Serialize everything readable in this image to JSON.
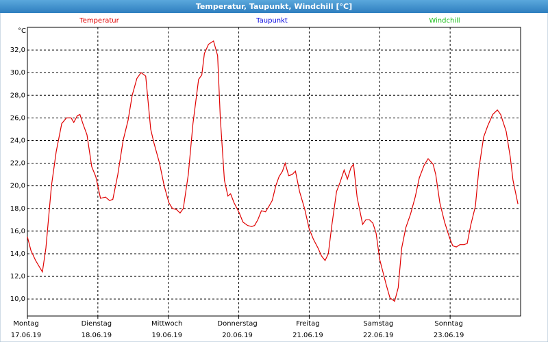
{
  "chart_data": {
    "type": "line",
    "title": "Temperatur, Taupunkt, Windchill [°C]",
    "y_unit": "°C",
    "x": [
      0,
      1.2,
      2.8,
      5.1,
      6.3,
      8.2,
      9.8,
      11.7,
      13.3,
      14.9,
      15.8,
      17.0,
      17.9,
      18.9,
      20.3,
      21.9,
      23.3,
      24.9,
      26.6,
      28.0,
      29.1,
      30.8,
      32.6,
      34.3,
      35.7,
      37.3,
      38.7,
      40.3,
      42.0,
      43.1,
      45.0,
      46.6,
      48.2,
      49.4,
      50.8,
      52.0,
      53.1,
      54.8,
      56.4,
      58.3,
      59.4,
      60.3,
      61.7,
      63.4,
      64.8,
      65.7,
      67.1,
      68.3,
      69.2,
      70.4,
      72.2,
      73.4,
      75.0,
      76.4,
      77.4,
      78.5,
      79.7,
      81.1,
      82.3,
      83.4,
      84.6,
      85.7,
      86.9,
      87.8,
      89.0,
      90.2,
      91.3,
      92.7,
      94.4,
      96.0,
      97.4,
      99.0,
      100.2,
      101.4,
      102.5,
      103.7,
      105.3,
      106.5,
      107.9,
      109.0,
      110.2,
      111.1,
      112.3,
      114.2,
      115.3,
      116.5,
      117.7,
      118.8,
      120.0,
      121.2,
      122.3,
      123.5,
      125.1,
      126.3,
      127.5,
      128.9,
      130.5,
      132.1,
      133.5,
      135.1,
      136.5,
      138.2,
      139.1,
      140.5,
      142.1,
      143.8,
      144.9,
      146.1,
      147.3,
      148.7,
      149.8,
      151.0,
      152.6,
      153.8,
      155.4,
      156.8,
      158.5,
      160.1,
      161.2,
      163.1,
      164.5,
      165.4,
      167.1
    ],
    "series": [
      {
        "name": "Temperatur",
        "color": "#e00000",
        "values": [
          15.5,
          14.3,
          13.4,
          12.4,
          14.5,
          20,
          23,
          25.5,
          26,
          26,
          25.6,
          26.2,
          26.3,
          25.5,
          24.5,
          21.7,
          20.8,
          18.9,
          19,
          18.7,
          18.8,
          21,
          24,
          25.8,
          28,
          29.5,
          30,
          29.7,
          25,
          23.8,
          22,
          20,
          18.5,
          18,
          17.9,
          17.6,
          18,
          21,
          25.5,
          29.4,
          29.8,
          31.7,
          32.5,
          32.8,
          31.5,
          26,
          20.5,
          19.1,
          19.3,
          18.5,
          17.6,
          16.8,
          16.5,
          16.4,
          16.5,
          17,
          17.8,
          17.7,
          18.2,
          18.7,
          20,
          20.8,
          21.3,
          22,
          20.9,
          21,
          21.3,
          19.5,
          18,
          16.2,
          15.3,
          14.5,
          13.8,
          13.4,
          14,
          16.5,
          19.5,
          20.3,
          21.4,
          20.6,
          21.6,
          21.9,
          19,
          16.6,
          17,
          17,
          16.7,
          15.8,
          13.5,
          12.3,
          11.2,
          10.1,
          9.8,
          11,
          14.5,
          16.3,
          17.5,
          19,
          20.7,
          21.8,
          22.4,
          21.9,
          21,
          18.5,
          16.8,
          15.4,
          14.7,
          14.6,
          14.8,
          14.8,
          14.9,
          16.5,
          18.2,
          21.5,
          24.3,
          25.3,
          26.3,
          26.7,
          26.3,
          24.8,
          22.5,
          20.5,
          18.4
        ]
      },
      {
        "name": "Taupunkt",
        "color": "#0000e0"
      },
      {
        "name": "Windchill",
        "color": "#20c020"
      }
    ],
    "xlim": [
      0,
      168
    ],
    "xticks": [
      {
        "value": 0,
        "label": "Montag"
      },
      {
        "value": 24,
        "label": "Dienstag"
      },
      {
        "value": 48,
        "label": "Mittwoch"
      },
      {
        "value": 72,
        "label": "Donnerstag"
      },
      {
        "value": 96,
        "label": "Freitag"
      },
      {
        "value": 120,
        "label": "Samstag"
      },
      {
        "value": 144,
        "label": "Sonntag"
      }
    ],
    "xtick_dates": [
      "17.06.19",
      "18.06.19",
      "19.06.19",
      "20.06.19",
      "21.06.19",
      "22.06.19",
      "23.06.19"
    ],
    "ylim": [
      8.5,
      34
    ],
    "yticks": [
      {
        "value": 10,
        "label": "10,0"
      },
      {
        "value": 12,
        "label": "12,0"
      },
      {
        "value": 14,
        "label": "14,0"
      },
      {
        "value": 16,
        "label": "16,0"
      },
      {
        "value": 18,
        "label": "18,0"
      },
      {
        "value": 20,
        "label": "20,0"
      },
      {
        "value": 22,
        "label": "22,0"
      },
      {
        "value": 24,
        "label": "24,0"
      },
      {
        "value": 26,
        "label": "26,0"
      },
      {
        "value": 28,
        "label": "28,0"
      },
      {
        "value": 30,
        "label": "30,0"
      },
      {
        "value": 32,
        "label": "32,0"
      }
    ],
    "grid": true
  }
}
